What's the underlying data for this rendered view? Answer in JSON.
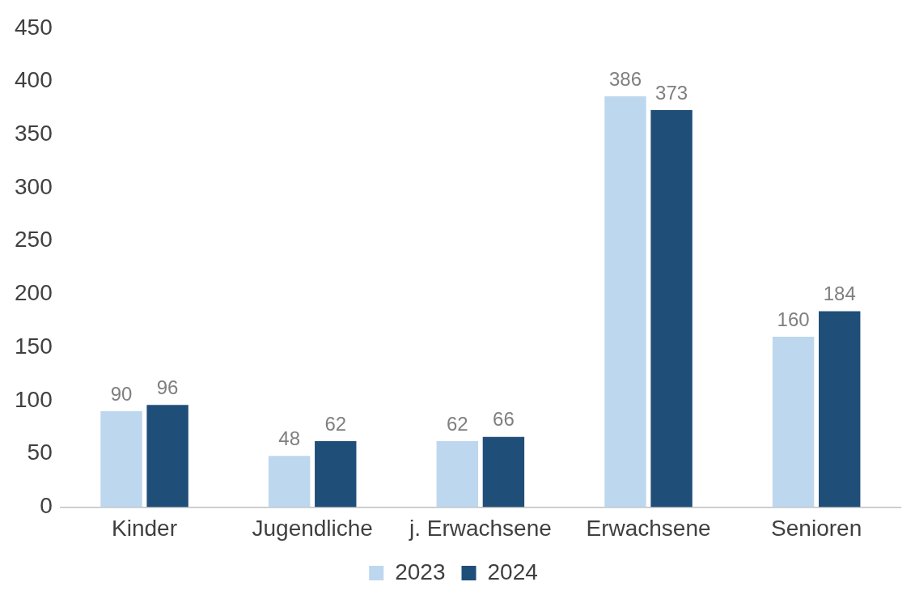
{
  "chart_data": {
    "type": "bar",
    "categories": [
      "Kinder",
      "Jugendliche",
      "j. Erwachsene",
      "Erwachsene",
      "Senioren"
    ],
    "series": [
      {
        "name": "2023",
        "color": "#bdd7ee",
        "values": [
          90,
          48,
          62,
          386,
          160
        ]
      },
      {
        "name": "2024",
        "color": "#1f4e79",
        "values": [
          96,
          62,
          66,
          373,
          184
        ]
      }
    ],
    "ylim": [
      0,
      450
    ],
    "yticks": [
      0,
      50,
      100,
      150,
      200,
      250,
      300,
      350,
      400,
      450
    ],
    "grid": false,
    "legend": "bottom",
    "data_labels": true
  }
}
